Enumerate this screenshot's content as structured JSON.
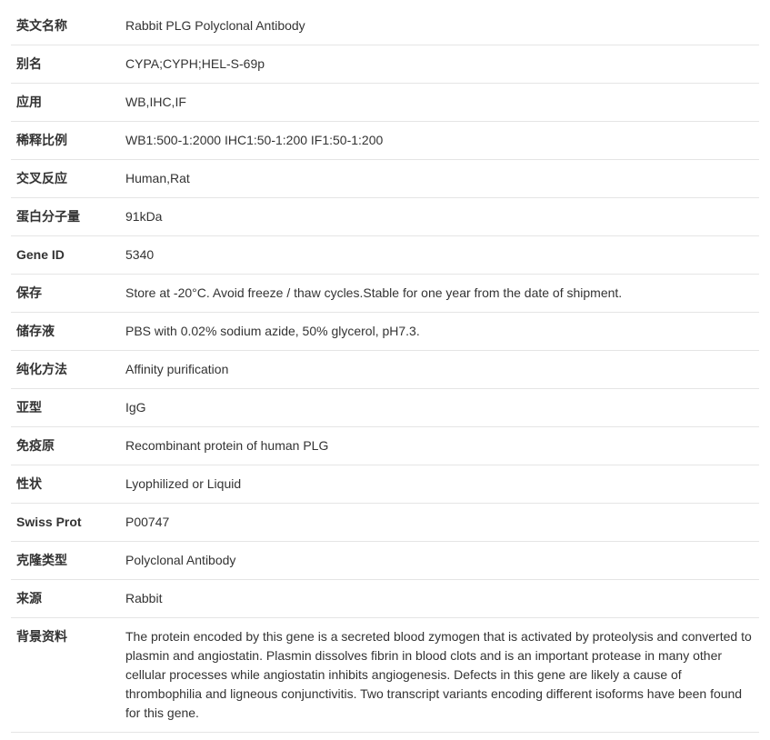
{
  "rows": [
    {
      "label": "英文名称",
      "value": "Rabbit PLG Polyclonal Antibody"
    },
    {
      "label": "别名",
      "value": "CYPA;CYPH;HEL-S-69p"
    },
    {
      "label": "应用",
      "value": "WB,IHC,IF"
    },
    {
      "label": "稀释比例",
      "value": "WB1:500-1:2000 IHC1:50-1:200 IF1:50-1:200"
    },
    {
      "label": "交叉反应",
      "value": "Human,Rat"
    },
    {
      "label": "蛋白分子量",
      "value": "91kDa"
    },
    {
      "label": "Gene ID",
      "value": "5340"
    },
    {
      "label": "保存",
      "value": "Store at -20°C. Avoid freeze / thaw cycles.Stable for one year from the date of shipment."
    },
    {
      "label": "储存液",
      "value": "PBS with 0.02% sodium azide, 50% glycerol, pH7.3."
    },
    {
      "label": "纯化方法",
      "value": "Affinity purification"
    },
    {
      "label": "亚型",
      "value": "IgG"
    },
    {
      "label": "免疫原",
      "value": "Recombinant protein of human PLG"
    },
    {
      "label": "性状",
      "value": "Lyophilized or Liquid"
    },
    {
      "label": "Swiss Prot",
      "value": "P00747"
    },
    {
      "label": "克隆类型",
      "value": "Polyclonal Antibody"
    },
    {
      "label": "来源",
      "value": "Rabbit"
    },
    {
      "label": "背景资料",
      "value": "The protein encoded by this gene is a secreted blood zymogen that is activated by proteolysis and converted to plasmin and angiostatin. Plasmin dissolves fibrin in blood clots and is an important protease in many other cellular processes while angiostatin inhibits angiogenesis. Defects in this gene are likely a cause of thrombophilia and ligneous conjunctivitis. Two transcript variants encoding different isoforms have been found for this gene."
    }
  ]
}
